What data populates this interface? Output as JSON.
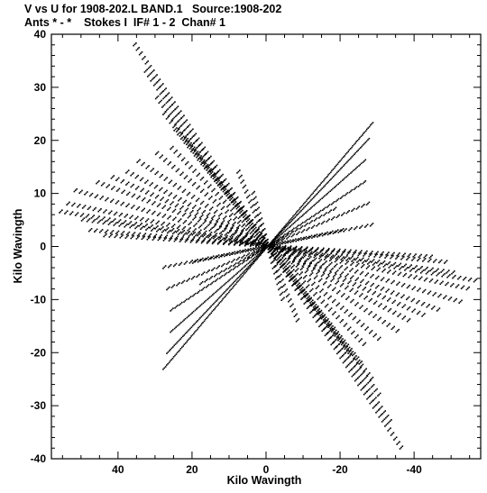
{
  "chart_data": {
    "type": "scatter",
    "title": "V vs U for 1908-202.L BAND.1   Source:1908-202",
    "subtitle": "Ants * - *    Stokes I  IF# 1 - 2  Chan# 1",
    "xlabel": "Kilo Wavingth",
    "ylabel": "Kilo Wavingth",
    "xlim": [
      58,
      -58
    ],
    "ylim": [
      -40,
      40
    ],
    "x_axis_reversed": true,
    "x_ticks": [
      40,
      20,
      0,
      -20,
      -40
    ],
    "x_tick_labels": [
      "40",
      "20",
      "0",
      "-20",
      "-40"
    ],
    "y_ticks": [
      40,
      30,
      20,
      10,
      0,
      -10,
      -20,
      -30,
      -40
    ],
    "y_tick_labels": [
      "40",
      "30",
      "20",
      "10",
      "0",
      "-10",
      "-20",
      "-30",
      "-40"
    ],
    "grid": false,
    "legend": "none",
    "marker_color": "#000000",
    "series": [
      {
        "values_note": "uv-coverage point tracks (symmetric pairs)",
        "tracks": [
          {
            "from": [
              56,
              6.5
            ],
            "to": [
              -56,
              -6.5
            ]
          },
          {
            "from": [
              54,
              8
            ],
            "to": [
              -54,
              -8
            ]
          },
          {
            "from": [
              52,
              10.5
            ],
            "to": [
              -52,
              -10.5
            ]
          },
          {
            "from": [
              50,
              5
            ],
            "to": [
              -50,
              -5
            ]
          },
          {
            "from": [
              48,
              3
            ],
            "to": [
              -48,
              -3
            ]
          },
          {
            "from": [
              46,
              12
            ],
            "to": [
              -46,
              -12
            ]
          },
          {
            "from": [
              44,
              2
            ],
            "to": [
              -44,
              -2
            ]
          },
          {
            "from": [
              42,
              13
            ],
            "to": [
              -42,
              -13
            ]
          },
          {
            "from": [
              38,
              14
            ],
            "to": [
              -38,
              -14
            ]
          },
          {
            "from": [
              35,
              16
            ],
            "to": [
              -35,
              -16
            ]
          },
          {
            "from": [
              30,
              17.5
            ],
            "to": [
              -30,
              -17.5
            ]
          },
          {
            "from": [
              26,
              18.5
            ],
            "to": [
              -26,
              -18.5
            ]
          },
          {
            "from": [
              36,
              38
            ],
            "to": [
              -36,
              -38
            ]
          },
          {
            "from": [
              33,
              33
            ],
            "to": [
              -33,
              -33
            ]
          },
          {
            "from": [
              30,
              28
            ],
            "to": [
              -30,
              -28
            ]
          },
          {
            "from": [
              28,
              25
            ],
            "to": [
              -28,
              -25
            ]
          },
          {
            "from": [
              25,
              22
            ],
            "to": [
              -25,
              -22
            ]
          },
          {
            "from": [
              22,
              20
            ],
            "to": [
              -22,
              -20
            ]
          },
          {
            "from": [
              28,
              -4
            ],
            "to": [
              -28,
              4
            ]
          },
          {
            "from": [
              27,
              -8
            ],
            "to": [
              -27,
              8
            ]
          },
          {
            "from": [
              26,
              -12
            ],
            "to": [
              -26,
              12
            ]
          },
          {
            "from": [
              26,
              -16
            ],
            "to": [
              -26,
              16
            ]
          },
          {
            "from": [
              27,
              -20
            ],
            "to": [
              -27,
              20
            ]
          },
          {
            "from": [
              28,
              -23
            ],
            "to": [
              -28,
              23
            ]
          },
          {
            "from": [
              20,
              -3
            ],
            "to": [
              -20,
              3
            ]
          },
          {
            "from": [
              18,
              -7
            ],
            "to": [
              -18,
              7
            ]
          },
          {
            "from": [
              8,
              14
            ],
            "to": [
              -8,
              -14
            ]
          },
          {
            "from": [
              4,
              10
            ],
            "to": [
              -4,
              -10
            ]
          }
        ]
      }
    ]
  }
}
